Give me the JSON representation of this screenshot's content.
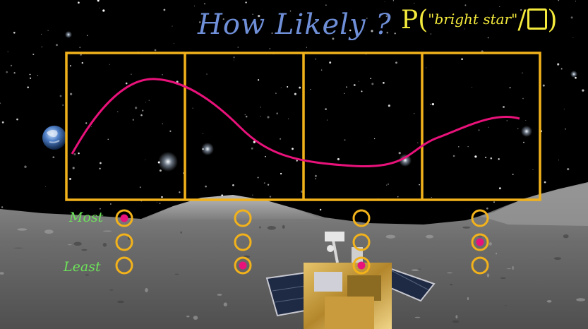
{
  "title": "How Likely ?",
  "formula": {
    "prefix": "P(",
    "argument": "\"bright star\"",
    "separator": "/",
    "suffix": ")"
  },
  "scale_labels": {
    "top": "Most",
    "bottom": "Least"
  },
  "panels": [
    {
      "filled_index": 0
    },
    {
      "filled_index": 2
    },
    {
      "filled_index": 2
    },
    {
      "filled_index": 1
    }
  ],
  "colors": {
    "frame": "#f2b21b",
    "curve": "#e8127a",
    "dot": "#e8127a",
    "title": "#6f8fd8",
    "formula": "#f4ea3c",
    "labels": "#6de35a"
  }
}
